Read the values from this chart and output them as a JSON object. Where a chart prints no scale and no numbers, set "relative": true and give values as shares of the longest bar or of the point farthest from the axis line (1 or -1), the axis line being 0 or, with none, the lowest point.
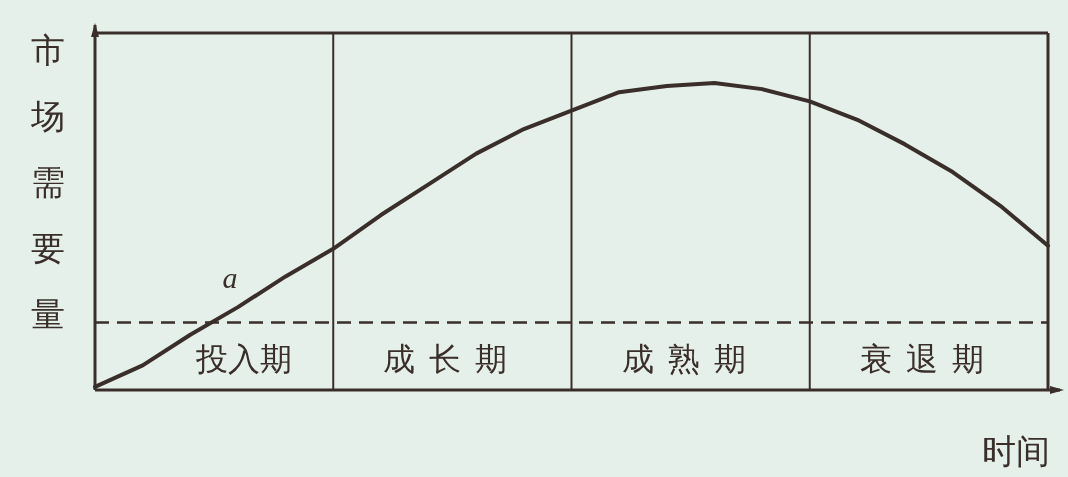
{
  "chart_data": {
    "type": "line",
    "relative": true,
    "ylabel": "市场需要量",
    "xlabel": "时间",
    "categories": [
      null,
      null,
      null,
      null,
      null,
      null,
      null,
      null,
      null,
      null,
      null,
      null,
      null,
      null,
      null,
      null,
      null,
      null,
      null,
      null,
      null
    ],
    "series": [
      {
        "color": "#3a2e2a",
        "values": [
          0.01,
          0.08,
          0.18,
          0.27,
          0.37,
          0.46,
          0.57,
          0.67,
          0.77,
          0.85,
          0.91,
          0.97,
          0.99,
          1.0,
          0.98,
          0.94,
          0.88,
          0.8,
          0.71,
          0.6,
          0.47
        ]
      }
    ],
    "annotations": [
      "投入期",
      "成长期",
      "成熟期",
      "衰退期",
      "a"
    ],
    "ref_lines": [
      {
        "axis": "y",
        "value": 0.22,
        "line_style": "dashed"
      }
    ],
    "grid": "x",
    "marker": "none",
    "line_style": "solid"
  }
}
